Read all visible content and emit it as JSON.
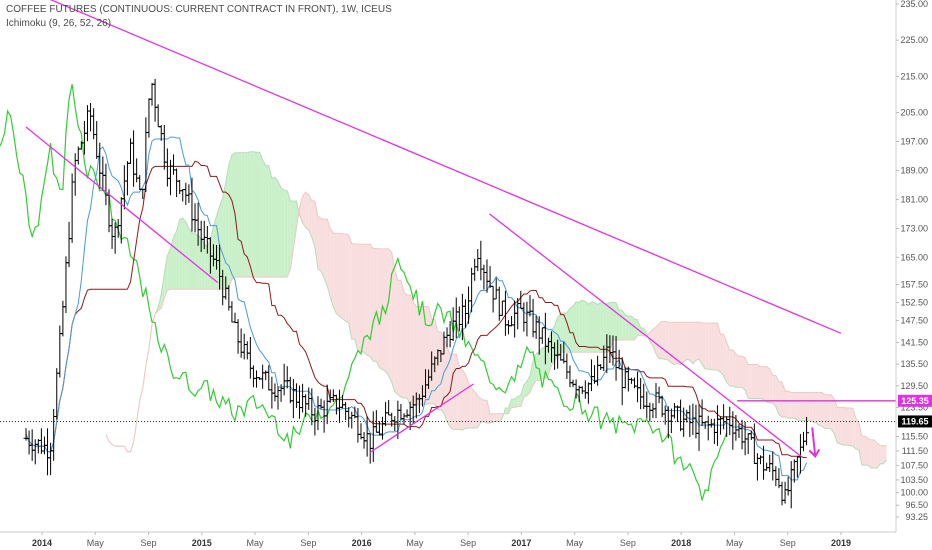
{
  "header": {
    "symbol_line": "COFFEE FUTURES (CONTINUOUS: CURRENT CONTRACT IN FRONT), 1W, ICEUS",
    "indicator_line": "Ichimoku (9, 26, 52, 26)"
  },
  "colors": {
    "background": "#ffffff",
    "candle": "#000000",
    "lagging_span": "#33cc33",
    "conversion_line": "#4a9bd6",
    "base_line": "#8b1a1a",
    "cloud_bull": "#c9f0c9",
    "cloud_bear": "#f8dede",
    "trendline": "#e033e0",
    "current_price_tag": "#000000",
    "level_tag": "#e033e0"
  },
  "chart_data": {
    "type": "candlestick",
    "timeframe": "1W",
    "indicator": "Ichimoku (9, 26, 52, 26)",
    "x_ticks": [
      "2014",
      "May",
      "Sep",
      "2015",
      "May",
      "Sep",
      "2016",
      "May",
      "Sep",
      "2017",
      "May",
      "Sep",
      "2018",
      "May",
      "Sep",
      "2019"
    ],
    "y_ticks": [
      "235.00",
      "225.00",
      "215.00",
      "205.00",
      "197.00",
      "189.00",
      "181.00",
      "173.00",
      "165.00",
      "157.50",
      "152.50",
      "147.50",
      "141.50",
      "135.50",
      "129.50",
      "123.50",
      "115.50",
      "111.50",
      "107.50",
      "103.50",
      "100.00",
      "96.50",
      "93.25"
    ],
    "ylim": [
      91.5,
      236
    ],
    "current_price": "119.65",
    "level_label": "125.35",
    "anchors": [
      {
        "t": 2013.9,
        "p": 115
      },
      {
        "t": 2014.05,
        "p": 112
      },
      {
        "t": 2014.12,
        "p": 145
      },
      {
        "t": 2014.2,
        "p": 190
      },
      {
        "t": 2014.3,
        "p": 205
      },
      {
        "t": 2014.38,
        "p": 185
      },
      {
        "t": 2014.45,
        "p": 170
      },
      {
        "t": 2014.55,
        "p": 195
      },
      {
        "t": 2014.62,
        "p": 180
      },
      {
        "t": 2014.68,
        "p": 215
      },
      {
        "t": 2014.78,
        "p": 190
      },
      {
        "t": 2014.88,
        "p": 185
      },
      {
        "t": 2015.0,
        "p": 170
      },
      {
        "t": 2015.1,
        "p": 162
      },
      {
        "t": 2015.2,
        "p": 145
      },
      {
        "t": 2015.3,
        "p": 135
      },
      {
        "t": 2015.42,
        "p": 130
      },
      {
        "t": 2015.55,
        "p": 128
      },
      {
        "t": 2015.7,
        "p": 122
      },
      {
        "t": 2015.85,
        "p": 125
      },
      {
        "t": 2016.0,
        "p": 118
      },
      {
        "t": 2016.05,
        "p": 114
      },
      {
        "t": 2016.2,
        "p": 122
      },
      {
        "t": 2016.35,
        "p": 125
      },
      {
        "t": 2016.45,
        "p": 135
      },
      {
        "t": 2016.55,
        "p": 145
      },
      {
        "t": 2016.65,
        "p": 150
      },
      {
        "t": 2016.72,
        "p": 168
      },
      {
        "t": 2016.8,
        "p": 158
      },
      {
        "t": 2016.9,
        "p": 148
      },
      {
        "t": 2017.0,
        "p": 150
      },
      {
        "t": 2017.1,
        "p": 145
      },
      {
        "t": 2017.2,
        "p": 138
      },
      {
        "t": 2017.35,
        "p": 130
      },
      {
        "t": 2017.45,
        "p": 130
      },
      {
        "t": 2017.55,
        "p": 140
      },
      {
        "t": 2017.62,
        "p": 132
      },
      {
        "t": 2017.72,
        "p": 127
      },
      {
        "t": 2017.85,
        "p": 125
      },
      {
        "t": 2018.0,
        "p": 120
      },
      {
        "t": 2018.15,
        "p": 118
      },
      {
        "t": 2018.3,
        "p": 120
      },
      {
        "t": 2018.4,
        "p": 115
      },
      {
        "t": 2018.5,
        "p": 108
      },
      {
        "t": 2018.6,
        "p": 105
      },
      {
        "t": 2018.65,
        "p": 98
      },
      {
        "t": 2018.7,
        "p": 105
      },
      {
        "t": 2018.75,
        "p": 112
      },
      {
        "t": 2018.8,
        "p": 122
      }
    ],
    "last_bar_t": 2018.8,
    "trendlines": [
      {
        "t1": 2013.85,
        "p1": 240,
        "t2": 2019.0,
        "p2": 144
      },
      {
        "t1": 2013.9,
        "p1": 201,
        "t2": 2015.1,
        "p2": 158
      },
      {
        "t1": 2016.05,
        "p1": 111,
        "t2": 2016.7,
        "p2": 130
      },
      {
        "t1": 2016.8,
        "p1": 177,
        "t2": 2018.75,
        "p2": 110
      },
      {
        "t1": 2018.35,
        "p1": 125.35,
        "t2": 2019.4,
        "p2": 125.35
      }
    ],
    "arrow": {
      "t": 2018.82,
      "p1": 118,
      "p2": 110
    }
  }
}
